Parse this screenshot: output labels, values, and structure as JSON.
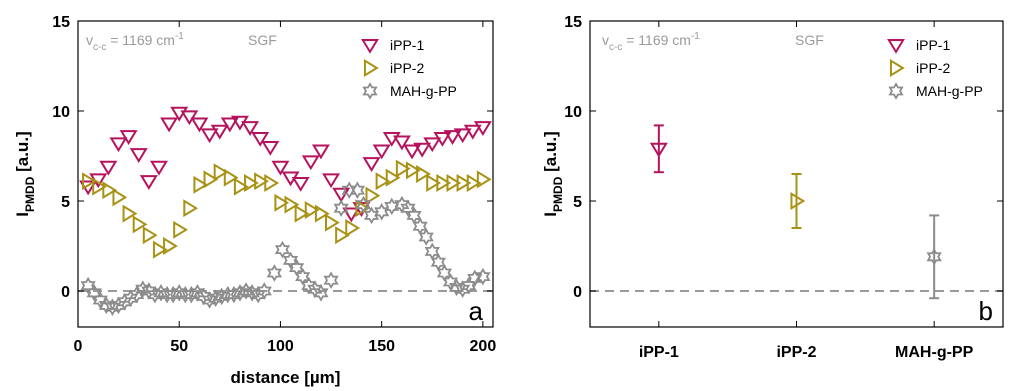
{
  "colors": {
    "ipp1": "#b5135d",
    "ipp2": "#a89214",
    "mah": "#8c8c8c",
    "zero_line": "#9a9a9a"
  },
  "chart_data": [
    {
      "type": "scatter",
      "panel_label": "a",
      "xlabel": "distance [µm]",
      "ylabel": "I",
      "ylabel_sub": "PMDD",
      "ylabel_unit": " [a.u.]",
      "xlim": [
        0,
        205
      ],
      "ylim": [
        -2,
        15
      ],
      "xticks": [
        0,
        50,
        100,
        150,
        200
      ],
      "yticks": [
        0,
        5,
        10,
        15
      ],
      "annotation": {
        "v": "v",
        "sub": "c-c",
        "eq": " = 1169 cm",
        "sup": "-1",
        "method": "SGF"
      },
      "zero_line": 0,
      "legend_position": "top-right",
      "series": [
        {
          "name": "iPP-1",
          "marker": "triangle-down",
          "x": [
            5,
            10,
            15,
            20,
            25,
            30,
            35,
            40,
            45,
            50,
            55,
            60,
            65,
            70,
            75,
            80,
            85,
            90,
            95,
            100,
            105,
            110,
            115,
            120,
            125,
            130,
            135,
            140,
            145,
            150,
            155,
            160,
            165,
            170,
            175,
            180,
            185,
            190,
            195,
            200
          ],
          "y": [
            5.8,
            6.2,
            6.9,
            8.2,
            8.6,
            7.6,
            6.1,
            6.9,
            9.3,
            9.9,
            9.7,
            9.3,
            8.7,
            8.9,
            9.3,
            9.4,
            9.1,
            8.5,
            8.0,
            6.9,
            6.3,
            6.0,
            7.2,
            7.8,
            6.2,
            5.4,
            4.3,
            4.6,
            7.1,
            7.8,
            8.5,
            8.3,
            7.8,
            7.9,
            8.2,
            8.5,
            8.6,
            8.7,
            8.9,
            9.1
          ]
        },
        {
          "name": "iPP-2",
          "marker": "triangle-right",
          "x": [
            5,
            10,
            15,
            20,
            25,
            30,
            35,
            40,
            45,
            50,
            55,
            60,
            65,
            70,
            75,
            80,
            85,
            90,
            95,
            100,
            105,
            110,
            115,
            120,
            125,
            130,
            135,
            140,
            145,
            150,
            155,
            160,
            165,
            170,
            175,
            180,
            185,
            190,
            195,
            200
          ],
          "y": [
            6.1,
            5.8,
            5.6,
            5.2,
            4.3,
            3.7,
            3.1,
            2.3,
            2.5,
            3.4,
            4.6,
            5.9,
            6.2,
            6.6,
            6.3,
            5.8,
            6.0,
            6.1,
            6.0,
            4.9,
            4.8,
            4.3,
            4.5,
            4.3,
            3.8,
            3.1,
            3.5,
            4.6,
            5.3,
            6.1,
            6.3,
            6.8,
            6.7,
            6.5,
            6.0,
            6.0,
            6.0,
            6.0,
            6.0,
            6.2
          ]
        },
        {
          "name": "MAH-g-PP",
          "marker": "hexagram",
          "x": [
            5,
            8,
            11,
            14,
            17,
            20,
            23,
            26,
            29,
            32,
            35,
            38,
            41,
            44,
            47,
            50,
            53,
            56,
            59,
            62,
            65,
            68,
            71,
            74,
            77,
            80,
            83,
            86,
            89,
            92,
            97,
            101,
            105,
            108,
            111,
            114,
            117,
            120,
            125,
            130,
            134,
            138,
            141,
            145,
            150,
            155,
            160,
            163,
            166,
            169,
            172,
            175,
            178,
            181,
            184,
            187,
            190,
            193,
            196,
            200
          ],
          "y": [
            0.3,
            -0.1,
            -0.5,
            -0.8,
            -0.9,
            -0.8,
            -0.6,
            -0.4,
            -0.2,
            0.1,
            0.0,
            -0.2,
            -0.1,
            -0.2,
            -0.2,
            -0.1,
            -0.2,
            -0.2,
            -0.1,
            -0.3,
            -0.5,
            -0.4,
            -0.3,
            -0.2,
            -0.2,
            -0.1,
            0.0,
            -0.1,
            -0.2,
            0.0,
            1.0,
            2.3,
            1.7,
            1.3,
            0.8,
            0.3,
            0.1,
            -0.1,
            0.6,
            4.6,
            5.6,
            5.6,
            4.8,
            4.2,
            4.4,
            4.7,
            4.8,
            4.6,
            4.2,
            3.6,
            3.0,
            2.2,
            1.6,
            1.0,
            0.5,
            0.2,
            0.1,
            0.3,
            0.7,
            0.8
          ]
        }
      ]
    },
    {
      "type": "scatter",
      "panel_label": "b",
      "ylabel": "I",
      "ylabel_sub": "PMDD",
      "ylabel_unit": " [a.u.]",
      "ylim": [
        -2,
        15
      ],
      "yticks": [
        0,
        5,
        10,
        15
      ],
      "categories": [
        "iPP-1",
        "iPP-2",
        "MAH-g-PP"
      ],
      "annotation": {
        "v": "v",
        "sub": "c-c",
        "eq": " = 1169 cm",
        "sup": "-1",
        "method": "SGF"
      },
      "zero_line": 0,
      "legend_position": "top-right",
      "series": [
        {
          "name": "iPP-1",
          "marker": "triangle-down",
          "mean": 7.9,
          "err_low": 6.6,
          "err_high": 9.2
        },
        {
          "name": "iPP-2",
          "marker": "triangle-right",
          "mean": 5.0,
          "err_low": 3.5,
          "err_high": 6.5
        },
        {
          "name": "MAH-g-PP",
          "marker": "hexagram",
          "mean": 1.9,
          "err_low": -0.4,
          "err_high": 4.2
        }
      ]
    }
  ]
}
